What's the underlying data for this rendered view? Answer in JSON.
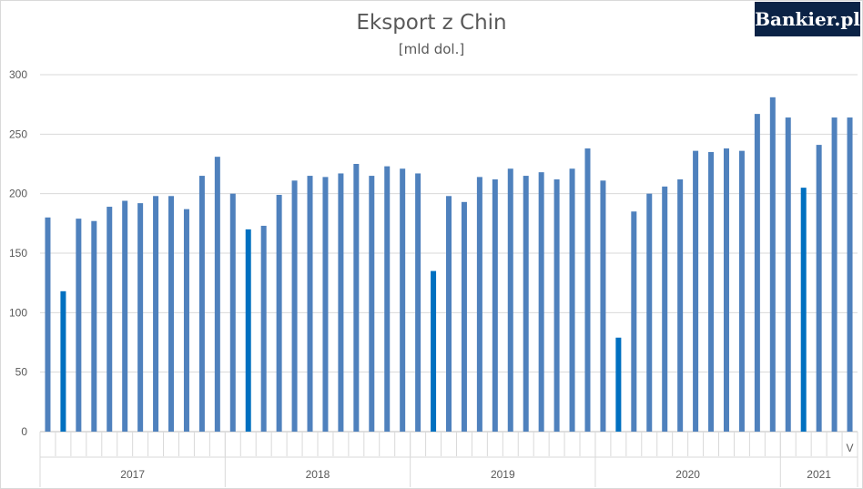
{
  "logo": {
    "text": "Bankier.pl"
  },
  "chart_data": {
    "type": "bar",
    "title": "Eksport z Chin",
    "subtitle": "[mld dol.]",
    "ylim": [
      0,
      300
    ],
    "yticks": [
      0,
      50,
      100,
      150,
      200,
      250,
      300
    ],
    "grid": true,
    "legend": "none",
    "colors": {
      "bar": "#4f81bd",
      "highlight": "#0070c0"
    },
    "years": [
      {
        "label": "2017",
        "months": 12
      },
      {
        "label": "2018",
        "months": 12
      },
      {
        "label": "2019",
        "months": 12
      },
      {
        "label": "2020",
        "months": 12
      },
      {
        "label": "2021",
        "months": 5
      }
    ],
    "last_month_label": "V",
    "values": [
      180,
      118,
      179,
      177,
      189,
      194,
      192,
      198,
      198,
      187,
      215,
      231,
      200,
      170,
      173,
      199,
      211,
      215,
      214,
      217,
      225,
      215,
      223,
      221,
      217,
      135,
      198,
      193,
      214,
      212,
      221,
      215,
      218,
      212,
      221,
      238,
      211,
      79,
      185,
      200,
      206,
      212,
      236,
      235,
      238,
      236,
      267,
      281,
      264,
      205,
      241,
      264,
      264
    ],
    "highlight_indices": [
      1,
      13,
      25,
      37,
      49
    ]
  }
}
